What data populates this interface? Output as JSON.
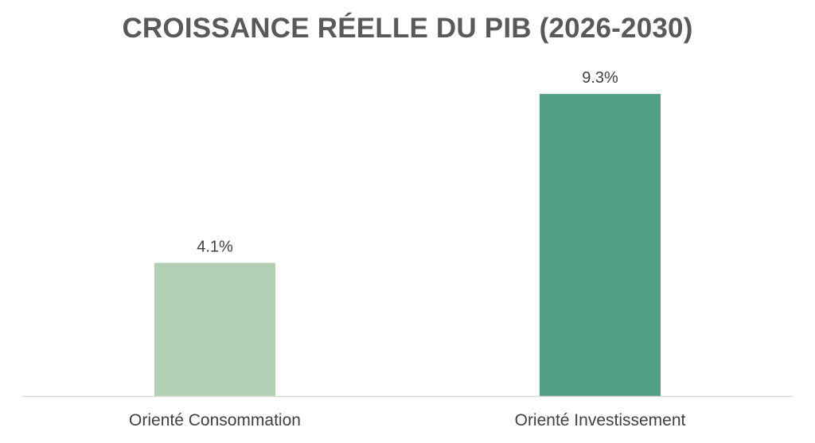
{
  "chart_data": {
    "type": "bar",
    "title": "CROISSANCE RÉELLE DU PIB (2026-2030)",
    "categories": [
      "Orienté Consommation",
      "Orienté Investissement"
    ],
    "values": [
      4.1,
      9.3
    ],
    "value_labels": [
      "4.1%",
      "9.3%"
    ],
    "colors": [
      "#b3cfb3",
      "#52a083"
    ],
    "ylim": [
      0,
      10
    ],
    "grid": false,
    "legend": "none",
    "axis_color": "#d9d9d9"
  }
}
